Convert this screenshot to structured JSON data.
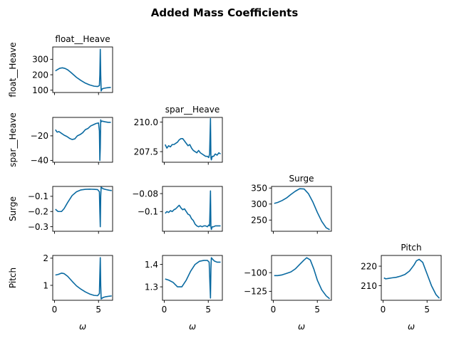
{
  "figure": {
    "title": "Added Mass Coefficients",
    "line_color": "#0a6aa1"
  },
  "chart_data": [
    {
      "id": "float_heave__float_heave",
      "type": "line",
      "title": "float__Heave",
      "ylabel": "float__Heave",
      "xlabel": "",
      "xlim": [
        -0.2,
        6.6
      ],
      "ylim": [
        85,
        380
      ],
      "yticks": [
        100,
        200,
        300
      ],
      "xticks": [],
      "x": [
        0.1,
        0.3,
        0.6,
        0.9,
        1.2,
        1.5,
        1.8,
        2.1,
        2.5,
        3.0,
        3.5,
        4.0,
        4.5,
        4.9,
        5.1,
        5.15,
        5.2,
        5.25,
        5.3,
        5.4,
        5.6,
        6.0,
        6.4
      ],
      "y": [
        225,
        232,
        242,
        245,
        241,
        232,
        218,
        203,
        183,
        163,
        146,
        134,
        126,
        124,
        130,
        200,
        365,
        200,
        95,
        108,
        112,
        116,
        118
      ]
    },
    {
      "id": "spar_heave__float_heave",
      "type": "line",
      "title": "",
      "ylabel": "spar__Heave",
      "xlabel": "",
      "xlim": [
        -0.2,
        6.6
      ],
      "ylim": [
        -41.5,
        -5
      ],
      "yticks": [
        -20,
        -40
      ],
      "xticks": [],
      "x": [
        0.1,
        0.3,
        0.5,
        0.8,
        1.1,
        1.4,
        1.7,
        2.0,
        2.3,
        2.6,
        2.9,
        3.2,
        3.5,
        3.8,
        4.1,
        4.4,
        4.7,
        5.0,
        5.1,
        5.15,
        5.2,
        5.25,
        5.3,
        5.4,
        5.7,
        6.1,
        6.4
      ],
      "y": [
        -15,
        -17,
        -16.5,
        -18,
        -19.5,
        -20.5,
        -22,
        -23,
        -22.5,
        -20,
        -19,
        -17.5,
        -15,
        -14,
        -12,
        -11,
        -10,
        -9.5,
        -16,
        -40,
        -30,
        -7,
        -8.5,
        -8,
        -8.5,
        -9,
        -9
      ]
    },
    {
      "id": "spar_heave__spar_heave",
      "type": "line",
      "title": "spar__Heave",
      "ylabel": "",
      "xlabel": "",
      "xlim": [
        -0.2,
        6.6
      ],
      "ylim": [
        206.6,
        210.4
      ],
      "yticks": [
        207.5,
        210.0
      ],
      "xticks": [],
      "x": [
        0.1,
        0.3,
        0.5,
        0.7,
        0.9,
        1.1,
        1.3,
        1.5,
        1.7,
        1.9,
        2.1,
        2.3,
        2.5,
        2.7,
        2.9,
        3.1,
        3.3,
        3.5,
        3.7,
        3.9,
        4.1,
        4.3,
        4.5,
        4.7,
        4.9,
        5.05,
        5.15,
        5.25,
        5.3,
        5.35,
        5.45,
        5.6,
        5.8,
        6.0,
        6.2,
        6.4
      ],
      "y": [
        208.1,
        207.8,
        208.0,
        207.9,
        208.1,
        208.1,
        208.2,
        208.3,
        208.5,
        208.6,
        208.6,
        208.4,
        208.2,
        208.0,
        208.1,
        207.8,
        207.6,
        207.5,
        207.4,
        207.6,
        207.4,
        207.3,
        207.2,
        207.1,
        207.1,
        207.0,
        207.3,
        210.3,
        207.0,
        206.8,
        207.1,
        207.1,
        207.3,
        207.2,
        207.4,
        207.3
      ]
    },
    {
      "id": "surge__float_heave",
      "type": "line",
      "title": "",
      "ylabel": "Surge",
      "xlabel": "",
      "xlim": [
        -0.2,
        6.6
      ],
      "ylim": [
        -0.33,
        -0.035
      ],
      "yticks": [
        -0.1,
        -0.2,
        -0.3
      ],
      "xticks": [],
      "x": [
        0.1,
        0.4,
        0.8,
        1.1,
        1.5,
        2.0,
        2.5,
        3.0,
        3.5,
        4.0,
        4.5,
        4.9,
        5.1,
        5.15,
        5.2,
        5.25,
        5.3,
        5.5,
        5.8,
        6.2,
        6.5
      ],
      "y": [
        -0.185,
        -0.2,
        -0.2,
        -0.18,
        -0.14,
        -0.095,
        -0.07,
        -0.058,
        -0.054,
        -0.053,
        -0.054,
        -0.056,
        -0.07,
        -0.2,
        -0.3,
        -0.1,
        -0.04,
        -0.05,
        -0.055,
        -0.06,
        -0.062
      ]
    },
    {
      "id": "surge__spar_heave",
      "type": "line",
      "title": "",
      "ylabel": "",
      "xlabel": "",
      "xlim": [
        -0.2,
        6.6
      ],
      "ylim": [
        -0.122,
        -0.072
      ],
      "yticks": [
        -0.08,
        -0.1
      ],
      "xticks": [],
      "x": [
        0.1,
        0.3,
        0.5,
        0.7,
        0.9,
        1.1,
        1.3,
        1.5,
        1.7,
        1.9,
        2.1,
        2.3,
        2.5,
        2.7,
        2.9,
        3.1,
        3.3,
        3.5,
        3.7,
        3.9,
        4.1,
        4.3,
        4.5,
        4.7,
        4.9,
        5.05,
        5.15,
        5.25,
        5.3,
        5.35,
        5.45,
        5.6,
        5.8,
        6.0,
        6.2,
        6.4
      ],
      "y": [
        -0.102,
        -0.1,
        -0.101,
        -0.099,
        -0.1,
        -0.098,
        -0.097,
        -0.095,
        -0.093,
        -0.096,
        -0.098,
        -0.097,
        -0.1,
        -0.103,
        -0.104,
        -0.108,
        -0.11,
        -0.114,
        -0.116,
        -0.117,
        -0.116,
        -0.117,
        -0.116,
        -0.116,
        -0.117,
        -0.115,
        -0.116,
        -0.077,
        -0.117,
        -0.12,
        -0.117,
        -0.117,
        -0.116,
        -0.116,
        -0.116,
        -0.116
      ]
    },
    {
      "id": "surge__surge",
      "type": "line",
      "title": "Surge",
      "ylabel": "",
      "xlabel": "",
      "xlim": [
        -0.2,
        6.6
      ],
      "ylim": [
        215,
        355
      ],
      "yticks": [
        250,
        300,
        350
      ],
      "xticks": [],
      "x": [
        0.1,
        0.5,
        1.0,
        1.5,
        2.0,
        2.5,
        3.0,
        3.5,
        4.0,
        4.5,
        5.0,
        5.5,
        6.0,
        6.4
      ],
      "y": [
        302,
        305,
        311,
        319,
        330,
        340,
        348,
        347,
        332,
        306,
        274,
        246,
        226,
        220
      ]
    },
    {
      "id": "pitch__float_heave",
      "type": "line",
      "title": "",
      "ylabel": "Pitch",
      "xlabel": "ω",
      "xlim": [
        -0.2,
        6.6
      ],
      "ylim": [
        0.45,
        2.1
      ],
      "yticks": [
        1,
        2
      ],
      "xticks": [
        0,
        5
      ],
      "x": [
        0.1,
        0.4,
        0.8,
        1.1,
        1.5,
        2.0,
        2.5,
        3.0,
        3.5,
        4.0,
        4.5,
        4.9,
        5.1,
        5.15,
        5.2,
        5.25,
        5.3,
        5.5,
        5.8,
        6.2,
        6.5
      ],
      "y": [
        1.38,
        1.4,
        1.45,
        1.43,
        1.33,
        1.15,
        0.98,
        0.86,
        0.76,
        0.68,
        0.63,
        0.62,
        0.7,
        1.4,
        2.02,
        1.0,
        0.5,
        0.55,
        0.58,
        0.6,
        0.61
      ]
    },
    {
      "id": "pitch__spar_heave",
      "type": "line",
      "title": "",
      "ylabel": "",
      "xlabel": "ω",
      "xlim": [
        -0.2,
        6.6
      ],
      "ylim": [
        1.24,
        1.44
      ],
      "yticks": [
        1.3,
        1.4
      ],
      "xticks": [
        0,
        5
      ],
      "x": [
        0.1,
        0.5,
        1.0,
        1.5,
        2.0,
        2.5,
        3.0,
        3.5,
        4.0,
        4.5,
        4.9,
        5.1,
        5.2,
        5.25,
        5.3,
        5.35,
        5.45,
        5.7,
        6.0,
        6.4
      ],
      "y": [
        1.335,
        1.33,
        1.32,
        1.3,
        1.3,
        1.33,
        1.37,
        1.4,
        1.414,
        1.418,
        1.418,
        1.41,
        1.3,
        1.25,
        1.38,
        1.43,
        1.425,
        1.415,
        1.41,
        1.41
      ]
    },
    {
      "id": "pitch__surge",
      "type": "line",
      "title": "",
      "ylabel": "",
      "xlabel": "ω",
      "xlim": [
        -0.2,
        6.6
      ],
      "ylim": [
        -137,
        -77
      ],
      "yticks": [
        -100,
        -125
      ],
      "xticks": [
        0,
        5
      ],
      "x": [
        0.1,
        0.5,
        1.0,
        1.5,
        2.0,
        2.5,
        3.0,
        3.5,
        3.8,
        4.2,
        4.6,
        5.0,
        5.5,
        6.0,
        6.4
      ],
      "y": [
        -104,
        -104,
        -103,
        -101,
        -99,
        -95,
        -89,
        -83,
        -80,
        -83,
        -95,
        -110,
        -123,
        -131,
        -135
      ]
    },
    {
      "id": "pitch__pitch",
      "type": "line",
      "title": "Pitch",
      "ylabel": "",
      "xlabel": "ω",
      "xlim": [
        -0.2,
        6.6
      ],
      "ylim": [
        202.5,
        225.5
      ],
      "yticks": [
        210,
        220
      ],
      "xticks": [
        0,
        5
      ],
      "x": [
        0.1,
        0.3,
        0.6,
        1.0,
        1.5,
        2.0,
        2.5,
        3.0,
        3.5,
        3.8,
        4.1,
        4.5,
        5.0,
        5.5,
        6.0,
        6.4
      ],
      "y": [
        214,
        213.5,
        213.7,
        214,
        214.3,
        214.9,
        215.8,
        217.5,
        220.5,
        222.8,
        223.5,
        222,
        216,
        210,
        205.5,
        203.5
      ]
    }
  ]
}
